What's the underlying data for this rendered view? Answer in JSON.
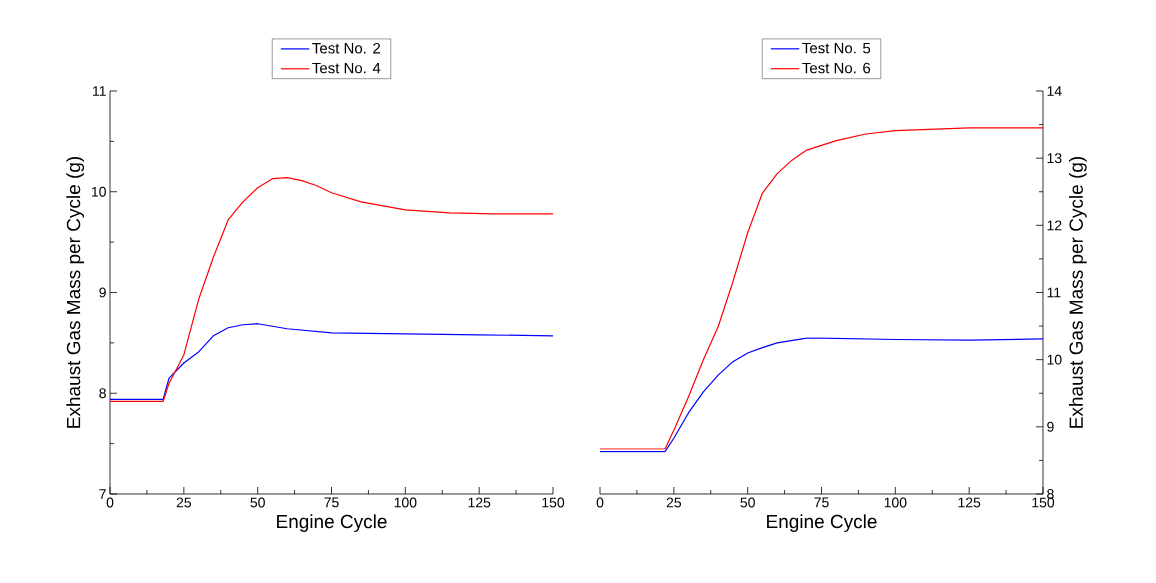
{
  "chart_data": [
    {
      "type": "line",
      "xlabel": "Engine Cycle",
      "ylabel": "Exhaust Gas Mass per Cycle (g)",
      "xlim": [
        0,
        150
      ],
      "xticks": [
        0,
        25,
        50,
        75,
        100,
        125,
        150
      ],
      "ylim": [
        7,
        11
      ],
      "yticks": [
        7,
        8,
        9,
        10,
        11
      ],
      "legend": "top",
      "line_style": "solid",
      "series": [
        {
          "name": "Test No. 2",
          "color": "#0000ff",
          "x": [
            0,
            5,
            10,
            15,
            18,
            20,
            25,
            30,
            35,
            40,
            45,
            50,
            60,
            75,
            100,
            125,
            150
          ],
          "values": [
            7.94,
            7.94,
            7.94,
            7.94,
            7.94,
            8.15,
            8.3,
            8.41,
            8.57,
            8.65,
            8.68,
            8.69,
            8.64,
            8.6,
            8.59,
            8.58,
            8.57
          ]
        },
        {
          "name": "Test No. 4",
          "color": "#ff0000",
          "x": [
            0,
            5,
            10,
            15,
            18,
            20,
            25,
            30,
            35,
            40,
            45,
            50,
            55,
            60,
            65,
            70,
            75,
            85,
            100,
            115,
            130,
            150
          ],
          "values": [
            7.92,
            7.92,
            7.92,
            7.92,
            7.92,
            8.1,
            8.38,
            8.93,
            9.35,
            9.72,
            9.9,
            10.04,
            10.13,
            10.14,
            10.11,
            10.06,
            9.99,
            9.9,
            9.82,
            9.79,
            9.78,
            9.78
          ]
        }
      ]
    },
    {
      "type": "line",
      "xlabel": "Engine Cycle",
      "y2label": "Exhaust Gas Mass per Cycle (g)",
      "xlim": [
        0,
        150
      ],
      "xticks": [
        0,
        25,
        50,
        75,
        100,
        125,
        150
      ],
      "y2lim": [
        8,
        14
      ],
      "y2ticks": [
        8,
        9,
        10,
        11,
        12,
        13,
        14
      ],
      "legend": "top",
      "line_style": "solid",
      "series": [
        {
          "name": "Test No. 5",
          "color": "#0000ff",
          "axis": "y2",
          "x": [
            0,
            5,
            10,
            15,
            22,
            25,
            30,
            35,
            40,
            45,
            50,
            55,
            60,
            70,
            75,
            100,
            125,
            150
          ],
          "values": [
            8.63,
            8.63,
            8.63,
            8.63,
            8.63,
            8.83,
            9.21,
            9.52,
            9.77,
            9.97,
            10.1,
            10.18,
            10.25,
            10.32,
            10.32,
            10.3,
            10.29,
            10.31
          ]
        },
        {
          "name": "Test No. 6",
          "color": "#ff0000",
          "axis": "y2",
          "x": [
            0,
            5,
            10,
            15,
            22,
            25,
            30,
            35,
            40,
            45,
            50,
            55,
            60,
            65,
            70,
            80,
            90,
            100,
            125,
            150
          ],
          "values": [
            8.67,
            8.67,
            8.67,
            8.67,
            8.67,
            8.95,
            9.45,
            10.0,
            10.49,
            11.16,
            11.89,
            12.48,
            12.77,
            12.97,
            13.12,
            13.26,
            13.36,
            13.41,
            13.45,
            13.45
          ]
        }
      ]
    }
  ]
}
